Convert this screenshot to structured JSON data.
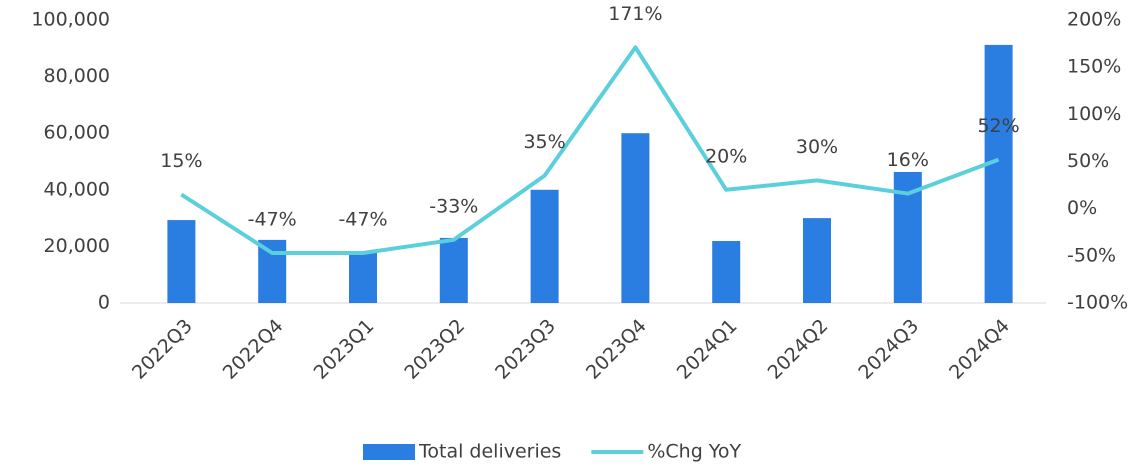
{
  "chart_data": {
    "type": "bar_line",
    "categories": [
      "2022Q3",
      "2022Q4",
      "2023Q1",
      "2023Q2",
      "2023Q3",
      "2023Q4",
      "2024Q1",
      "2024Q2",
      "2024Q3",
      "2024Q4"
    ],
    "series": [
      {
        "name": "Total deliveries",
        "color": "#2a7de1",
        "type": "bar",
        "values": [
          29300,
          22300,
          18000,
          23000,
          40000,
          60000,
          21900,
          30000,
          46300,
          91200
        ]
      },
      {
        "name": "%Chg YoY",
        "color": "#5ccfdd",
        "type": "line",
        "axis": "y2",
        "values": [
          15,
          -47,
          -47,
          -33,
          35,
          171,
          20,
          30,
          16,
          52
        ],
        "value_labels": [
          "15%",
          "-47%",
          "-47%",
          "-33%",
          "35%",
          "171%",
          "20%",
          "30%",
          "16%",
          "52%"
        ]
      }
    ],
    "ylim": [
      0,
      100000
    ],
    "yticks": [
      0,
      {
        "value": 20000,
        "label": "20,000"
      },
      {
        "value": 40000,
        "label": "40,000"
      },
      {
        "value": 60000,
        "label": "60,000"
      },
      {
        "value": 80000,
        "label": "80,000"
      },
      {
        "value": 100000,
        "label": "100,000"
      }
    ],
    "y2lim": [
      -100,
      200
    ],
    "y2ticks": [
      {
        "value": -100,
        "label": "-100%"
      },
      {
        "value": -50,
        "label": "-50%"
      },
      {
        "value": 0,
        "label": "0%"
      },
      {
        "value": 50,
        "label": "50%"
      },
      {
        "value": 100,
        "label": "100%"
      },
      {
        "value": 150,
        "label": "150%"
      },
      {
        "value": 200,
        "label": "200%"
      }
    ],
    "legend": "bottom"
  }
}
